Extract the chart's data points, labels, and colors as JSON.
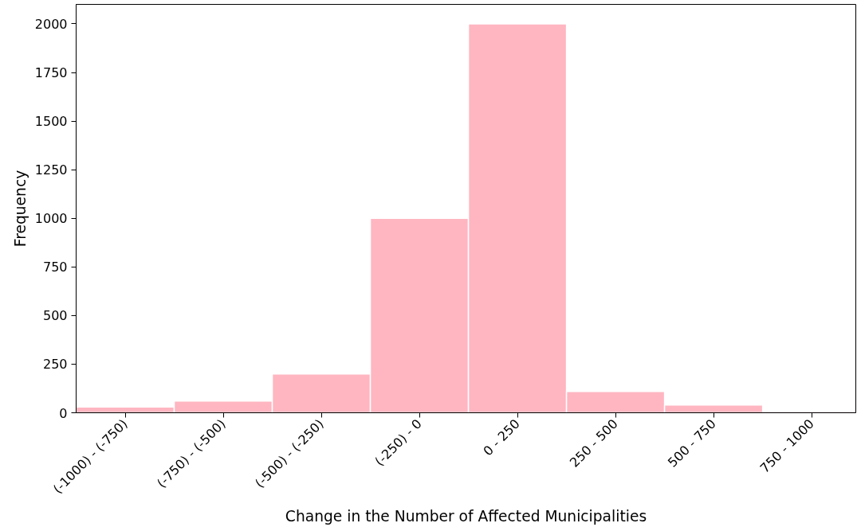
{
  "chart_data": {
    "type": "bar",
    "xlabel": "Change in the Number of Affected Municipalities",
    "ylabel": "Frequency",
    "categories": [
      "(-1000) - (-750)",
      "(-750) - (-500)",
      "(-500) - (-250)",
      "(-250) - 0",
      "0 - 250",
      "250 - 500",
      "500 - 750",
      "750 - 1000"
    ],
    "values": [
      30,
      60,
      200,
      1000,
      2000,
      110,
      40,
      0
    ],
    "color": "#ffb6c1",
    "ylim": [
      0,
      2100
    ],
    "yticks": [
      0,
      250,
      500,
      750,
      1000,
      1250,
      1500,
      1750,
      2000
    ],
    "grid": false
  }
}
